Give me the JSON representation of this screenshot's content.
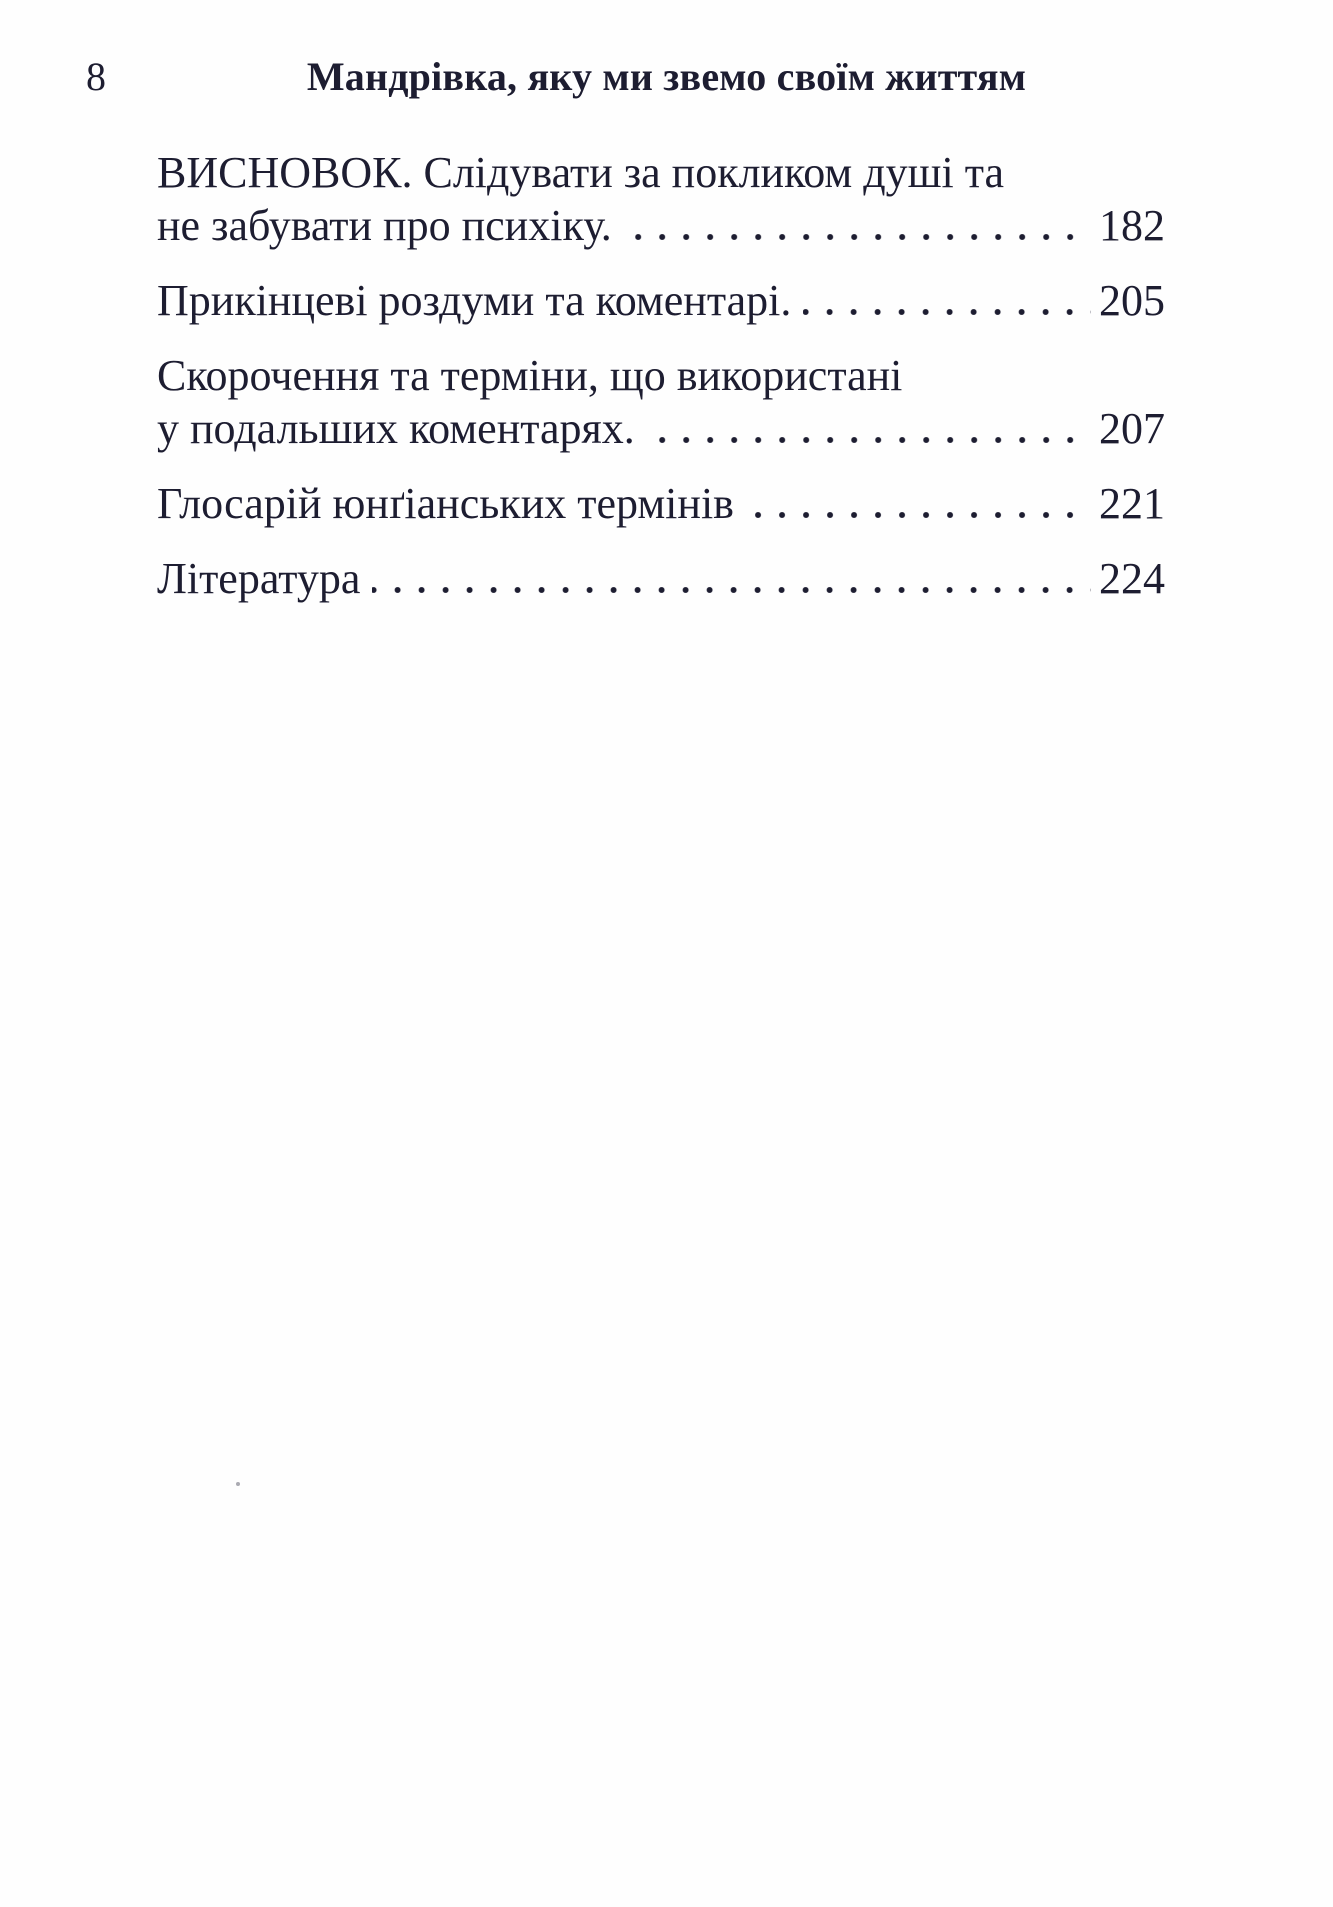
{
  "page": {
    "folio": "8",
    "running_head": "Мандрівка, яку ми звемо своїм життям"
  },
  "toc": {
    "entries": [
      {
        "intro": "ВИСНОВОК. Слідувати за покликом душі та",
        "label": "не забувати про психіку.",
        "page": "182"
      },
      {
        "label": "Прикінцеві роздуми та коментарі.",
        "page": "205"
      },
      {
        "intro": "Скорочення та терміни, що використані",
        "label": "у подальших коментарях.",
        "page": "207"
      },
      {
        "label": "Глосарій юнґіанських термінів",
        "page": "221"
      },
      {
        "label": "Література",
        "page": "224"
      }
    ]
  }
}
